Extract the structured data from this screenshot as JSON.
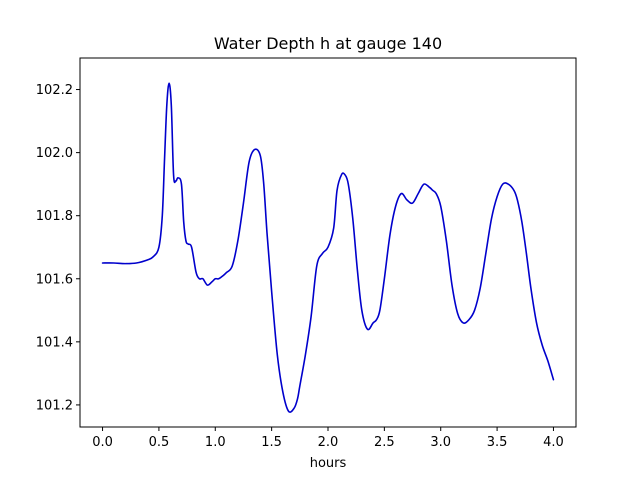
{
  "chart_data": {
    "type": "line",
    "title": "Water Depth h at gauge 140",
    "xlabel": "hours",
    "ylabel": "",
    "xlim": [
      -0.2,
      4.2
    ],
    "ylim": [
      101.13,
      102.3
    ],
    "xticks": [
      0.0,
      0.5,
      1.0,
      1.5,
      2.0,
      2.5,
      3.0,
      3.5,
      4.0
    ],
    "xtick_labels": [
      "0.0",
      "0.5",
      "1.0",
      "1.5",
      "2.0",
      "2.5",
      "3.0",
      "3.5",
      "4.0"
    ],
    "yticks": [
      101.2,
      101.4,
      101.6,
      101.8,
      102.0,
      102.2
    ],
    "ytick_labels": [
      "101.2",
      "101.4",
      "101.6",
      "101.8",
      "102.0",
      "102.2"
    ],
    "grid": false,
    "legend": "none",
    "colors": {
      "series": "#0000cc"
    },
    "series": [
      {
        "x": [
          0.0,
          0.1,
          0.2,
          0.3,
          0.4,
          0.45,
          0.5,
          0.53,
          0.55,
          0.57,
          0.59,
          0.61,
          0.63,
          0.65,
          0.67,
          0.7,
          0.72,
          0.74,
          0.76,
          0.79,
          0.83,
          0.86,
          0.89,
          0.93,
          0.97,
          1.0,
          1.03,
          1.07,
          1.1,
          1.15,
          1.2,
          1.25,
          1.3,
          1.35,
          1.4,
          1.43,
          1.46,
          1.5,
          1.55,
          1.6,
          1.65,
          1.7,
          1.73,
          1.75,
          1.8,
          1.85,
          1.9,
          1.95,
          2.0,
          2.05,
          2.08,
          2.12,
          2.15,
          2.18,
          2.22,
          2.26,
          2.3,
          2.35,
          2.4,
          2.43,
          2.46,
          2.5,
          2.55,
          2.6,
          2.65,
          2.7,
          2.75,
          2.8,
          2.85,
          2.9,
          2.93,
          2.96,
          3.0,
          3.05,
          3.1,
          3.15,
          3.2,
          3.25,
          3.3,
          3.35,
          3.4,
          3.45,
          3.5,
          3.55,
          3.6,
          3.65,
          3.68,
          3.72,
          3.76,
          3.8,
          3.85,
          3.9,
          3.95,
          4.0
        ],
        "y": [
          101.65,
          101.65,
          101.648,
          101.65,
          101.66,
          101.67,
          101.7,
          101.8,
          101.98,
          102.15,
          102.22,
          102.15,
          101.93,
          101.91,
          101.92,
          101.9,
          101.78,
          101.72,
          101.71,
          101.7,
          101.62,
          101.6,
          101.6,
          101.58,
          101.59,
          101.6,
          101.6,
          101.61,
          101.62,
          101.64,
          101.72,
          101.84,
          101.97,
          102.01,
          101.99,
          101.9,
          101.74,
          101.56,
          101.36,
          101.24,
          101.18,
          101.19,
          101.22,
          101.26,
          101.36,
          101.48,
          101.64,
          101.68,
          101.7,
          101.76,
          101.88,
          101.93,
          101.93,
          101.9,
          101.79,
          101.63,
          101.5,
          101.44,
          101.46,
          101.47,
          101.5,
          101.6,
          101.74,
          101.83,
          101.87,
          101.85,
          101.84,
          101.87,
          101.9,
          101.89,
          101.88,
          101.87,
          101.83,
          101.72,
          101.58,
          101.49,
          101.46,
          101.47,
          101.5,
          101.57,
          101.68,
          101.79,
          101.86,
          101.9,
          101.9,
          101.88,
          101.85,
          101.78,
          101.68,
          101.57,
          101.46,
          101.39,
          101.34,
          101.28
        ]
      }
    ]
  }
}
